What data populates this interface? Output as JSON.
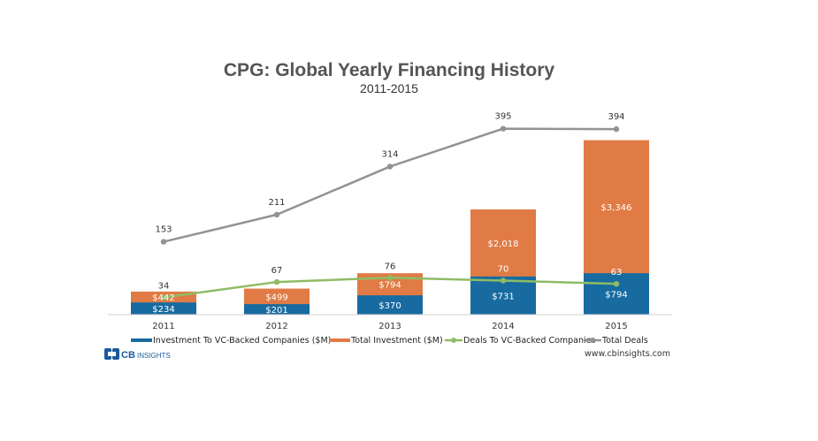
{
  "chart_data": {
    "type": "bar",
    "title": "CPG: Global Yearly Financing History",
    "subtitle": "2011-2015",
    "categories": [
      "2011",
      "2012",
      "2013",
      "2014",
      "2015"
    ],
    "series": [
      {
        "name": "Investment To VC-Backed Companies ($M)",
        "kind": "bar",
        "color": "#176ba0",
        "values": [
          234,
          201,
          370,
          731,
          794
        ],
        "labels": [
          "$234",
          "$201",
          "$370",
          "$731",
          "$794"
        ]
      },
      {
        "name": "Total Investment ($M)",
        "kind": "bar",
        "color": "#e07b45",
        "values": [
          442,
          499,
          794,
          2018,
          3346
        ],
        "labels": [
          "$442",
          "$499",
          "$794",
          "$2,018",
          "$3,346"
        ]
      },
      {
        "name": "Deals To VC-Backed Companies",
        "kind": "line",
        "color": "#8fbc65",
        "values": [
          34,
          67,
          76,
          70,
          63
        ],
        "labels": [
          "34",
          "67",
          "76",
          "70",
          "63"
        ]
      },
      {
        "name": "Total Deals",
        "kind": "line",
        "color": "#939393",
        "values": [
          153,
          211,
          314,
          395,
          394
        ],
        "labels": [
          "153",
          "211",
          "314",
          "395",
          "394"
        ]
      }
    ],
    "stacked": true,
    "grid": false,
    "legend_position": "bottom",
    "xlabel": "",
    "ylabel": ""
  },
  "branding": {
    "logo_name": "CB INSIGHTS",
    "logo_main": "CB",
    "logo_sub": "INSIGHTS",
    "source_url": "www.cbinsights.com"
  }
}
